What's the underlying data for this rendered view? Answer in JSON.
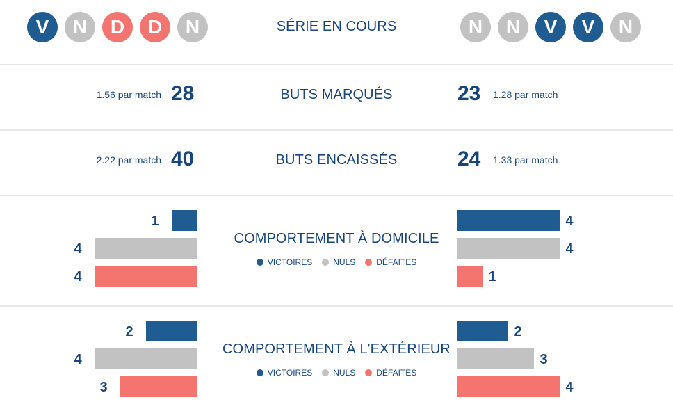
{
  "colors": {
    "win": "#1f5c91",
    "draw": "#c2c2c2",
    "loss": "#f47470",
    "text": "#17467f"
  },
  "form": {
    "title": "SÉRIE EN COURS",
    "home": [
      "V",
      "N",
      "D",
      "D",
      "N"
    ],
    "away": [
      "N",
      "N",
      "V",
      "V",
      "N"
    ]
  },
  "scored": {
    "title": "BUTS MARQUÉS",
    "home": {
      "total": "28",
      "per_match": "1.56 par match"
    },
    "away": {
      "total": "23",
      "per_match": "1.28 par match"
    }
  },
  "conceded": {
    "title": "BUTS ENCAISSÉS",
    "home": {
      "total": "40",
      "per_match": "2.22 par match"
    },
    "away": {
      "total": "24",
      "per_match": "1.33 par match"
    }
  },
  "legend": {
    "wins": "VICTOIRES",
    "draws": "NULS",
    "losses": "DÉFAITES"
  },
  "home_record": {
    "title": "COMPORTEMENT À DOMICILE",
    "home": {
      "wins": 1,
      "draws": 4,
      "losses": 4
    },
    "away": {
      "wins": 4,
      "draws": 4,
      "losses": 1
    }
  },
  "away_record": {
    "title": "COMPORTEMENT À L'EXTÉRIEUR",
    "home": {
      "wins": 2,
      "draws": 4,
      "losses": 3
    },
    "away": {
      "wins": 2,
      "draws": 3,
      "losses": 4
    }
  }
}
